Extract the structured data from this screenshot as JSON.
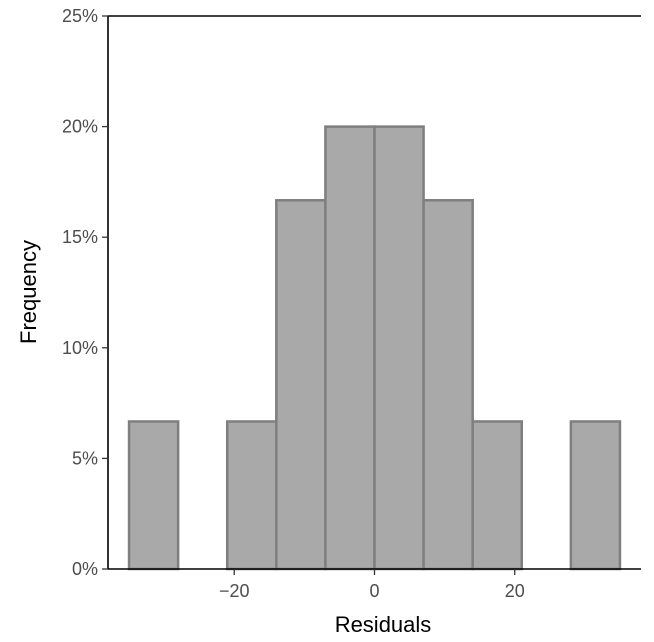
{
  "chart_data": {
    "type": "bar",
    "title": "",
    "xlabel": "Residuals",
    "ylabel": "Frequency",
    "bin_width": 7,
    "bins": [
      {
        "start": -35,
        "end": -28,
        "value": 6.67
      },
      {
        "start": -28,
        "end": -21,
        "value": 0
      },
      {
        "start": -21,
        "end": -14,
        "value": 6.67
      },
      {
        "start": -14,
        "end": -7,
        "value": 16.67
      },
      {
        "start": -7,
        "end": 0,
        "value": 20
      },
      {
        "start": 0,
        "end": 7,
        "value": 20
      },
      {
        "start": 7,
        "end": 14,
        "value": 16.67
      },
      {
        "start": 14,
        "end": 21,
        "value": 6.67
      },
      {
        "start": 21,
        "end": 28,
        "value": 0
      },
      {
        "start": 28,
        "end": 35,
        "value": 6.67
      }
    ],
    "xlim": [
      -38,
      38
    ],
    "ylim": [
      0,
      25
    ],
    "x_ticks": [
      {
        "value": -20,
        "label": "−20"
      },
      {
        "value": 0,
        "label": "0"
      },
      {
        "value": 20,
        "label": "20"
      }
    ],
    "y_ticks": [
      {
        "value": 0,
        "label": "0%"
      },
      {
        "value": 5,
        "label": "5%"
      },
      {
        "value": 10,
        "label": "10%"
      },
      {
        "value": 15,
        "label": "15%"
      },
      {
        "value": 20,
        "label": "20%"
      },
      {
        "value": 25,
        "label": "25%"
      }
    ],
    "grid": false,
    "bar_fill": "#a9a9a9",
    "bar_stroke": "#7f7f7f"
  }
}
